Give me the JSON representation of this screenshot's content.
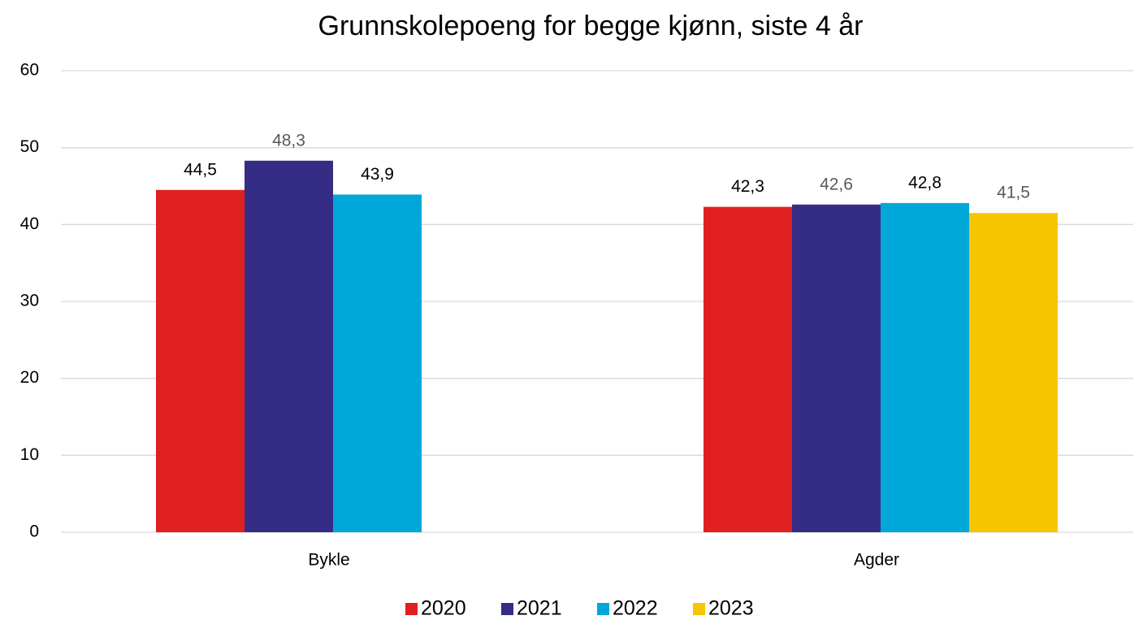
{
  "chart_data": {
    "type": "bar",
    "title": "Grunnskolepoeng for begge kjønn, siste 4 år",
    "categories": [
      "Bykle",
      "Agder"
    ],
    "series": [
      {
        "name": "2020",
        "color": "#e02020",
        "label_color": "#000000",
        "values": [
          44.5,
          42.3
        ],
        "value_labels": [
          "44,5",
          "42,3"
        ]
      },
      {
        "name": "2021",
        "color": "#352c85",
        "label_color": "#595959",
        "values": [
          48.3,
          42.6
        ],
        "value_labels": [
          "48,3",
          "42,6"
        ]
      },
      {
        "name": "2022",
        "color": "#00a8d9",
        "label_color": "#000000",
        "values": [
          43.9,
          42.8
        ],
        "value_labels": [
          "43,9",
          "42,8"
        ]
      },
      {
        "name": "2023",
        "color": "#f7c600",
        "label_color": "#595959",
        "values": [
          null,
          41.5
        ],
        "value_labels": [
          null,
          "41,5"
        ]
      }
    ],
    "ylim": [
      0,
      60
    ],
    "yticks": [
      0,
      10,
      20,
      30,
      40,
      50,
      60
    ],
    "grid": true,
    "legend": "bottom"
  }
}
